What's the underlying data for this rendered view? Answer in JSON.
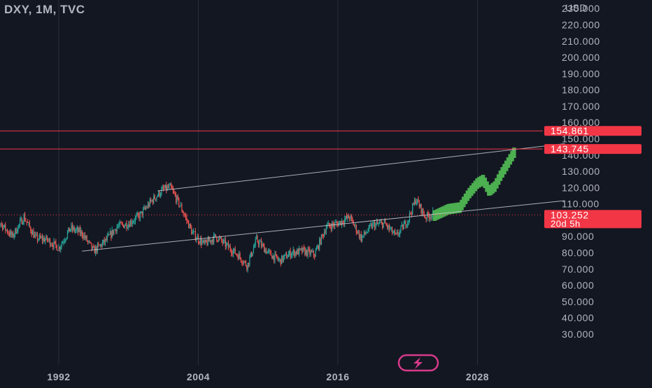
{
  "header": {
    "title": "DXY, 1M, TVC",
    "currency": "USD"
  },
  "colors": {
    "background": "#131722",
    "grid": "#2a2e39",
    "axis_text": "#b2b5be",
    "up_candle": "#26a69a",
    "down_candle": "#ef5350",
    "projection": "#4caf50",
    "channel": "#c7c9d1",
    "level_line": "#f23645",
    "price_badge": "#f23645",
    "badge_text": "#ffffff",
    "logo_ring": "#d63a8a"
  },
  "logo": {
    "icon": "lightning-bolt-icon"
  },
  "chart_data": {
    "type": "candlestick",
    "title": "DXY, 1M, TVC",
    "ylabel": "USD",
    "ylim": [
      25,
      240
    ],
    "xlim": [
      1986,
      2036
    ],
    "y_ticks": [
      "30.000",
      "40.000",
      "50.000",
      "60.000",
      "70.000",
      "80.000",
      "90.000",
      "100.000",
      "110.000",
      "120.000",
      "130.000",
      "140.000",
      "150.000",
      "160.000",
      "170.000",
      "180.000",
      "190.000",
      "200.000",
      "210.000",
      "220.000",
      "230.000"
    ],
    "x_ticks": [
      "1992",
      "2004",
      "2016",
      "2028"
    ],
    "grid": true,
    "price_path": [
      [
        1986.0,
        103
      ],
      [
        1987.0,
        98
      ],
      [
        1988.0,
        90
      ],
      [
        1989.0,
        102
      ],
      [
        1990.0,
        89
      ],
      [
        1991.0,
        88
      ],
      [
        1992.0,
        83
      ],
      [
        1993.0,
        95
      ],
      [
        1994.0,
        92
      ],
      [
        1995.0,
        81
      ],
      [
        1996.0,
        87
      ],
      [
        1997.0,
        96
      ],
      [
        1998.0,
        98
      ],
      [
        1999.0,
        103
      ],
      [
        2000.0,
        112
      ],
      [
        2001.0,
        119
      ],
      [
        2001.6,
        120
      ],
      [
        2002.5,
        108
      ],
      [
        2003.5,
        92
      ],
      [
        2004.5,
        85
      ],
      [
        2005.5,
        90
      ],
      [
        2006.5,
        84
      ],
      [
        2007.5,
        78
      ],
      [
        2008.2,
        72
      ],
      [
        2009.0,
        88
      ],
      [
        2010.0,
        80
      ],
      [
        2011.0,
        75
      ],
      [
        2012.0,
        80
      ],
      [
        2013.0,
        81
      ],
      [
        2014.0,
        79
      ],
      [
        2015.0,
        96
      ],
      [
        2016.0,
        98
      ],
      [
        2017.0,
        102
      ],
      [
        2018.0,
        89
      ],
      [
        2019.0,
        97
      ],
      [
        2020.0,
        98
      ],
      [
        2021.0,
        90
      ],
      [
        2022.0,
        100
      ],
      [
        2022.7,
        113
      ],
      [
        2023.5,
        102
      ],
      [
        2024.2,
        104
      ]
    ],
    "projection_path": [
      [
        2024.3,
        103
      ],
      [
        2025.5,
        107
      ],
      [
        2026.5,
        108
      ],
      [
        2027.2,
        116
      ],
      [
        2028.0,
        123
      ],
      [
        2028.5,
        125
      ],
      [
        2029.0,
        118
      ],
      [
        2029.5,
        121
      ],
      [
        2030.0,
        128
      ],
      [
        2030.5,
        134
      ],
      [
        2031.0,
        140
      ],
      [
        2031.3,
        143.7
      ]
    ],
    "channel_upper": [
      [
        2000.5,
        118
      ],
      [
        2035.5,
        147
      ]
    ],
    "channel_lower": [
      [
        1994.0,
        81
      ],
      [
        2035.5,
        112
      ]
    ],
    "horizontal_levels": [
      154.861,
      143.745
    ],
    "current_price": 103.252,
    "price_badges": [
      {
        "value": 154.861,
        "label": "154.861"
      },
      {
        "value": 143.745,
        "label": "143.745"
      },
      {
        "value": 103.252,
        "label": "103.252",
        "sublabel": "20d 5h"
      }
    ]
  }
}
